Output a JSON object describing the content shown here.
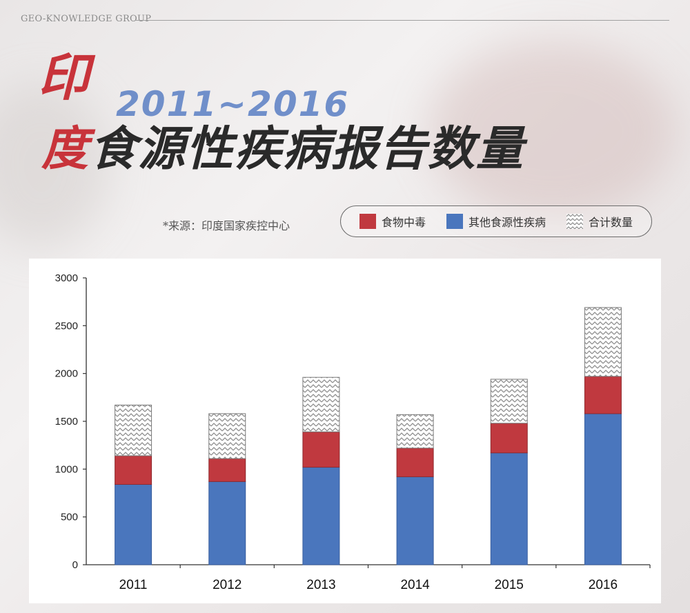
{
  "brand": "GEO-KNOWLEDGE GROUP",
  "title": {
    "first_char": "印",
    "years": "2011~2016",
    "rest_first": "度",
    "rest": "食源性疾病报告数量"
  },
  "source": "*来源：印度国家疾控中心",
  "colors": {
    "red": "#c0393f",
    "blue": "#4a76bd",
    "hatch": "#9a9a9a"
  },
  "chart_data": {
    "type": "bar",
    "categories": [
      "2011",
      "2012",
      "2013",
      "2014",
      "2015",
      "2016"
    ],
    "series": [
      {
        "name": "其他食源性疾病",
        "values": [
          840,
          870,
          1020,
          920,
          1170,
          1580
        ]
      },
      {
        "name": "食物中毒",
        "values": [
          300,
          240,
          370,
          300,
          310,
          390
        ]
      },
      {
        "name": "合计数量",
        "values": [
          530,
          470,
          570,
          350,
          460,
          720
        ]
      }
    ],
    "totals": [
      1670,
      1580,
      1960,
      1570,
      1940,
      2690
    ],
    "ylim": [
      0,
      3000
    ],
    "yticks": [
      0,
      500,
      1000,
      1500,
      2000,
      2500,
      3000
    ],
    "legend": [
      "食物中毒",
      "其他食源性疾病",
      "合计数量"
    ],
    "stacked": true
  }
}
